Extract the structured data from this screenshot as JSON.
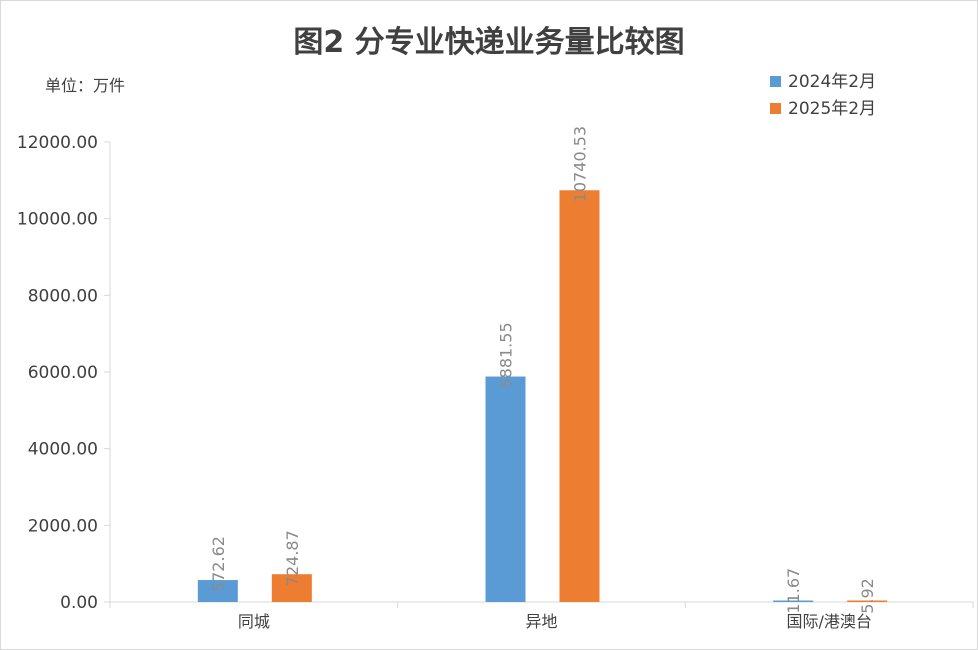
{
  "chart_data": {
    "type": "bar",
    "title": "图2  分专业快递业务量比较图",
    "unit_label": "单位：万件",
    "categories": [
      "同城",
      "异地",
      "国际/港澳台"
    ],
    "series": [
      {
        "name": "2024年2月",
        "color": "#5b9bd5",
        "values": [
          572.62,
          5881.55,
          11.67
        ],
        "labels": [
          "572.62",
          "5881.55",
          "11.67"
        ]
      },
      {
        "name": "2025年2月",
        "color": "#ed7d31",
        "values": [
          724.87,
          10740.53,
          5.92
        ],
        "labels": [
          "724.87",
          "10740.53",
          "5.92"
        ]
      }
    ],
    "y_ticks": [
      "0.00",
      "2000.00",
      "4000.00",
      "6000.00",
      "8000.00",
      "10000.00",
      "12000.00"
    ],
    "ylim": [
      0,
      12000
    ],
    "legend_position": "top-right",
    "grid": false
  }
}
